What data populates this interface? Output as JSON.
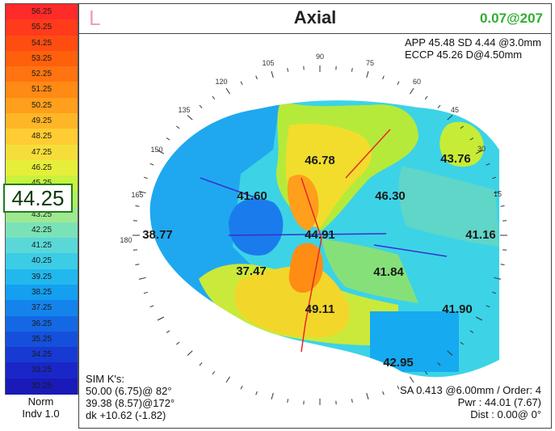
{
  "scale": {
    "values": [
      "56.25",
      "55.25",
      "54.25",
      "53.25",
      "52.25",
      "51.25",
      "50.25",
      "49.25",
      "48.25",
      "47.25",
      "46.25",
      "45.25",
      "44.25",
      "43.25",
      "42.25",
      "41.25",
      "40.25",
      "39.25",
      "38.25",
      "37.25",
      "36.25",
      "35.25",
      "34.25",
      "33.25",
      "32.25"
    ],
    "colors": [
      "#ff2a2a",
      "#ff3b1c",
      "#ff4d12",
      "#ff600c",
      "#ff7410",
      "#ff8a14",
      "#ff9f1c",
      "#ffb626",
      "#ffcc33",
      "#f5de3a",
      "#e6ee3a",
      "#c8f23e",
      "#aef060",
      "#9ee890",
      "#7ae2b8",
      "#5ad8d8",
      "#3ccce6",
      "#22b8ee",
      "#159ff0",
      "#1484ec",
      "#1468e4",
      "#1550dc",
      "#173ad2",
      "#1a26c8",
      "#1a1ab8"
    ],
    "selected": "44.25",
    "norm_label": "Norm",
    "norm_version": "Indv 1.0"
  },
  "header": {
    "marker": "L",
    "title": "Axial",
    "right_value": "0.07@207"
  },
  "top_info": {
    "line1": "APP 45.48 SD 4.44  @3.0mm",
    "line2": "ECCP 45.26 D@4.50mm"
  },
  "map": {
    "values": [
      "46.78",
      "43.76",
      "41.60",
      "46.30",
      "38.77",
      "44.91",
      "41.16",
      "37.47",
      "41.84",
      "49.11",
      "41.90",
      "42.95"
    ],
    "axis_labels": [
      "90",
      "75",
      "60",
      "45",
      "30",
      "15",
      "180",
      "165",
      "150",
      "135",
      "120",
      "105"
    ]
  },
  "sim_k": {
    "title": "SIM K's:",
    "line1": "50.00 (6.75)@ 82°",
    "line2": "39.38 (8.57)@172°",
    "line3": "dk +10.62 (-1.82)"
  },
  "bottom_info": {
    "line1": "SA  0.413 @6.00mm / Order: 4",
    "line2": "Pwr :  44.01 (7.67)",
    "line3": "Dist :  0.00@  0°"
  }
}
